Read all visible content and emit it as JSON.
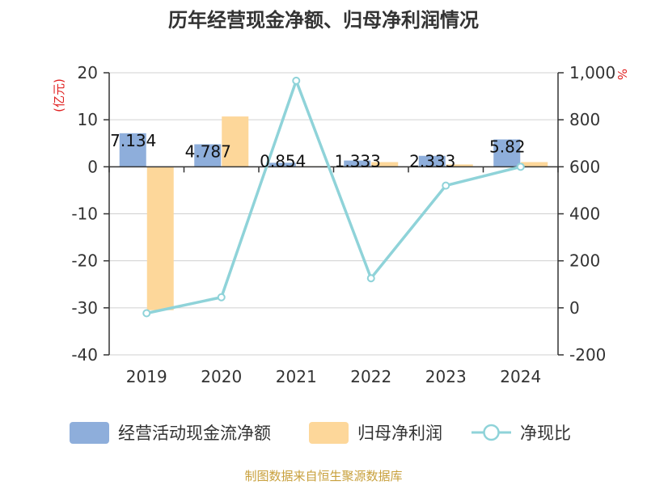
{
  "chart_data": {
    "type": "bar",
    "title": "历年经营现金净额、归母净利润情况",
    "categories": [
      "2019",
      "2020",
      "2021",
      "2022",
      "2023",
      "2024"
    ],
    "left_axis": {
      "unit": "(亿元)",
      "ylim": [
        -40,
        20
      ],
      "ticks": [
        "20",
        "10",
        "0",
        "-10",
        "-20",
        "-30",
        "-40"
      ]
    },
    "right_axis": {
      "unit": "%",
      "ylim": [
        -200,
        1000
      ],
      "ticks": [
        "1,000",
        "800",
        "600",
        "400",
        "200",
        "0",
        "-200"
      ]
    },
    "series": [
      {
        "name": "经营活动现金流净额",
        "type": "bar",
        "axis": "left",
        "color": "#8eaedb",
        "values": [
          7.134,
          4.787,
          0.854,
          1.333,
          2.333,
          5.82
        ],
        "labels": [
          "7.134",
          "4.787",
          "0.854",
          "1.333",
          "2.333",
          "5.82"
        ]
      },
      {
        "name": "归母净利润",
        "type": "bar",
        "axis": "left",
        "color": "#fdd79a",
        "values": [
          -30.5,
          10.7,
          0.1,
          1.0,
          0.5,
          1.0
        ]
      },
      {
        "name": "净现比",
        "type": "line",
        "axis": "right",
        "color": "#8fd3d9",
        "values": [
          -23,
          45,
          966,
          126,
          520,
          600
        ]
      }
    ],
    "grid": true,
    "legend_position": "bottom",
    "source": "制图数据来自恒生聚源数据库"
  }
}
